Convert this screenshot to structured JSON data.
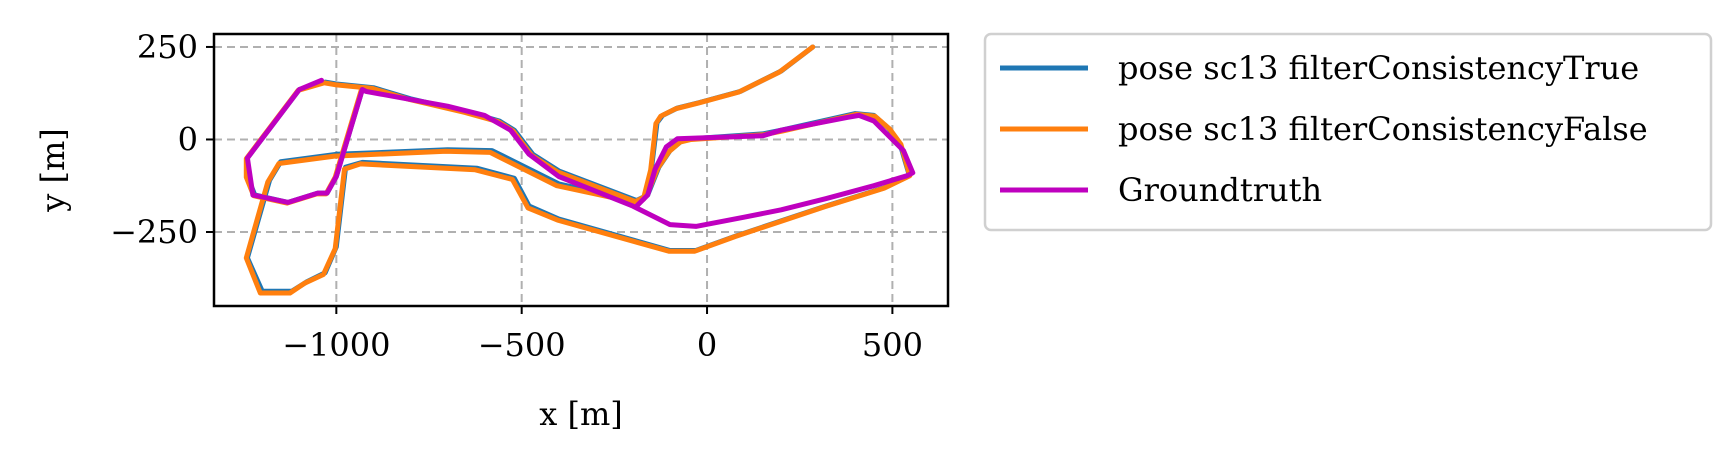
{
  "chart_data": {
    "type": "line",
    "title": "",
    "xlabel": "x [m]",
    "ylabel": "y [m]",
    "xlim": [
      -1330,
      650
    ],
    "ylim": [
      -450,
      285
    ],
    "xticks": [
      -1000,
      -500,
      0,
      500
    ],
    "yticks": [
      -250,
      0,
      250
    ],
    "xtick_labels": [
      "−1000",
      "−500",
      "0",
      "500"
    ],
    "ytick_labels": [
      "−250",
      "0",
      "250"
    ],
    "grid": true,
    "legend_position": "outside-right",
    "series": [
      {
        "name": "pose sc13 filterConsistencyTrue",
        "color": "#1f77b4",
        "points": [
          [
            285,
            250
          ],
          [
            200,
            185
          ],
          [
            90,
            130
          ],
          [
            -20,
            100
          ],
          [
            -80,
            85
          ],
          [
            -120,
            65
          ],
          [
            -135,
            45
          ],
          [
            -150,
            -80
          ],
          [
            -170,
            -160
          ],
          [
            -190,
            -175
          ],
          [
            -200,
            -165
          ],
          [
            -400,
            -120
          ],
          [
            -550,
            -45
          ],
          [
            -580,
            -30
          ],
          [
            -700,
            -28
          ],
          [
            -1000,
            -40
          ],
          [
            -1150,
            -60
          ],
          [
            -1180,
            -110
          ],
          [
            -1240,
            -320
          ],
          [
            -1200,
            -410
          ],
          [
            -1120,
            -410
          ],
          [
            -1080,
            -385
          ],
          [
            -1030,
            -360
          ],
          [
            -1000,
            -290
          ],
          [
            -975,
            -75
          ],
          [
            -930,
            -62
          ],
          [
            -620,
            -78
          ],
          [
            -520,
            -105
          ],
          [
            -480,
            -180
          ],
          [
            -400,
            -215
          ],
          [
            -100,
            -300
          ],
          [
            -30,
            -300
          ],
          [
            80,
            -260
          ],
          [
            200,
            -220
          ],
          [
            320,
            -180
          ],
          [
            480,
            -130
          ],
          [
            545,
            -95
          ],
          [
            520,
            -10
          ],
          [
            490,
            30
          ],
          [
            450,
            65
          ],
          [
            400,
            70
          ],
          [
            200,
            25
          ],
          [
            150,
            15
          ],
          [
            -40,
            2
          ],
          [
            -70,
            -5
          ],
          [
            -100,
            -30
          ],
          [
            -130,
            -75
          ],
          [
            -160,
            -150
          ],
          [
            -190,
            -165
          ],
          [
            -400,
            -85
          ],
          [
            -470,
            -40
          ],
          [
            -520,
            25
          ],
          [
            -560,
            50
          ],
          [
            -650,
            75
          ],
          [
            -800,
            110
          ],
          [
            -900,
            140
          ],
          [
            -1000,
            150
          ],
          [
            -1030,
            155
          ],
          [
            -1100,
            135
          ],
          [
            -1240,
            -50
          ],
          [
            -1240,
            -100
          ],
          [
            -1220,
            -150
          ],
          [
            -1130,
            -170
          ],
          [
            -1050,
            -145
          ],
          [
            -1025,
            -145
          ],
          [
            -1000,
            -100
          ],
          [
            -930,
            135
          ]
        ]
      },
      {
        "name": "pose sc13 filterConsistencyFalse",
        "color": "#ff7f0e",
        "points": [
          [
            285,
            250
          ],
          [
            195,
            182
          ],
          [
            85,
            128
          ],
          [
            -25,
            98
          ],
          [
            -85,
            83
          ],
          [
            -125,
            63
          ],
          [
            -138,
            43
          ],
          [
            -152,
            -82
          ],
          [
            -172,
            -162
          ],
          [
            -192,
            -178
          ],
          [
            -205,
            -168
          ],
          [
            -405,
            -125
          ],
          [
            -555,
            -50
          ],
          [
            -585,
            -35
          ],
          [
            -705,
            -32
          ],
          [
            -1005,
            -45
          ],
          [
            -1155,
            -65
          ],
          [
            -1185,
            -115
          ],
          [
            -1243,
            -320
          ],
          [
            -1205,
            -415
          ],
          [
            -1125,
            -415
          ],
          [
            -1085,
            -388
          ],
          [
            -1035,
            -365
          ],
          [
            -1003,
            -295
          ],
          [
            -978,
            -80
          ],
          [
            -935,
            -66
          ],
          [
            -625,
            -82
          ],
          [
            -525,
            -108
          ],
          [
            -483,
            -185
          ],
          [
            -403,
            -218
          ],
          [
            -103,
            -302
          ],
          [
            -33,
            -302
          ],
          [
            77,
            -262
          ],
          [
            197,
            -222
          ],
          [
            317,
            -182
          ],
          [
            477,
            -132
          ],
          [
            547,
            -98
          ],
          [
            523,
            -13
          ],
          [
            493,
            28
          ],
          [
            453,
            63
          ],
          [
            403,
            68
          ],
          [
            203,
            23
          ],
          [
            153,
            13
          ],
          [
            -43,
            0
          ],
          [
            -73,
            -7
          ],
          [
            -103,
            -33
          ],
          [
            -133,
            -78
          ],
          [
            -163,
            -152
          ],
          [
            -193,
            -168
          ],
          [
            -403,
            -88
          ],
          [
            -473,
            -43
          ],
          [
            -523,
            23
          ],
          [
            -563,
            48
          ],
          [
            -653,
            73
          ],
          [
            -803,
            108
          ],
          [
            -903,
            138
          ],
          [
            -1003,
            148
          ],
          [
            -1033,
            153
          ],
          [
            -1103,
            133
          ],
          [
            -1243,
            -52
          ],
          [
            -1243,
            -102
          ],
          [
            -1223,
            -152
          ],
          [
            -1133,
            -172
          ],
          [
            -1053,
            -147
          ],
          [
            -1028,
            -147
          ],
          [
            -1003,
            -102
          ],
          [
            -933,
            133
          ]
        ]
      },
      {
        "name": "Groundtruth",
        "color": "#bf00bf",
        "points": [
          [
            -1040,
            160
          ],
          [
            -1100,
            135
          ],
          [
            -1240,
            -50
          ],
          [
            -1225,
            -150
          ],
          [
            -1130,
            -170
          ],
          [
            -1050,
            -145
          ],
          [
            -1025,
            -145
          ],
          [
            -1000,
            -100
          ],
          [
            -930,
            135
          ],
          [
            -920,
            130
          ],
          [
            -700,
            90
          ],
          [
            -600,
            65
          ],
          [
            -530,
            25
          ],
          [
            -480,
            -40
          ],
          [
            -400,
            -100
          ],
          [
            -200,
            -180
          ],
          [
            -100,
            -230
          ],
          [
            -30,
            -235
          ],
          [
            100,
            -210
          ],
          [
            200,
            -190
          ],
          [
            320,
            -160
          ],
          [
            450,
            -125
          ],
          [
            540,
            -98
          ],
          [
            555,
            -90
          ],
          [
            530,
            -30
          ],
          [
            500,
            0
          ],
          [
            450,
            50
          ],
          [
            410,
            65
          ],
          [
            380,
            60
          ],
          [
            200,
            25
          ],
          [
            150,
            10
          ],
          [
            -80,
            2
          ],
          [
            -110,
            -20
          ],
          [
            -140,
            -80
          ],
          [
            -160,
            -150
          ],
          [
            -190,
            -180
          ]
        ]
      }
    ]
  },
  "legend": {
    "items": [
      {
        "label": "pose sc13 filterConsistencyTrue",
        "color": "#1f77b4"
      },
      {
        "label": "pose sc13 filterConsistencyFalse",
        "color": "#ff7f0e"
      },
      {
        "label": "Groundtruth",
        "color": "#bf00bf"
      }
    ]
  }
}
